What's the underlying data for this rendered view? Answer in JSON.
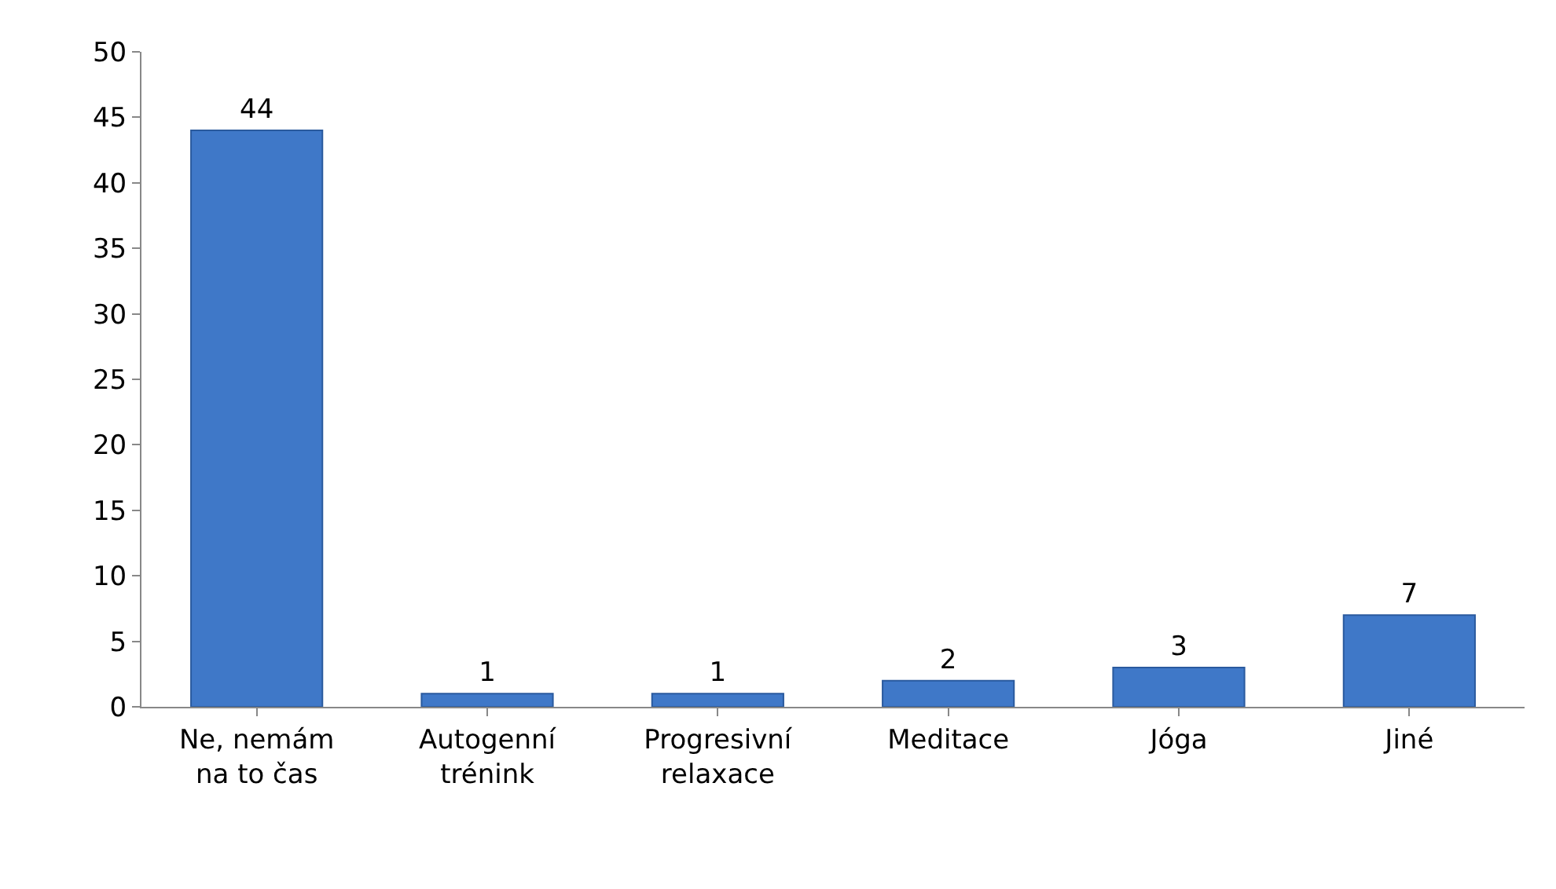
{
  "chart_data": {
    "type": "bar",
    "categories": [
      "Ne, nemám\nna to čas",
      "Autogenní\ntrénink",
      "Progresivní\nrelaxace",
      "Meditace",
      "Jóga",
      "Jiné"
    ],
    "values": [
      44,
      1,
      1,
      2,
      3,
      7
    ],
    "color": "#3f78c8",
    "ylim": [
      0,
      50
    ],
    "yticks": [
      0,
      5,
      10,
      15,
      20,
      25,
      30,
      35,
      40,
      45,
      50
    ],
    "data_labels": true
  }
}
